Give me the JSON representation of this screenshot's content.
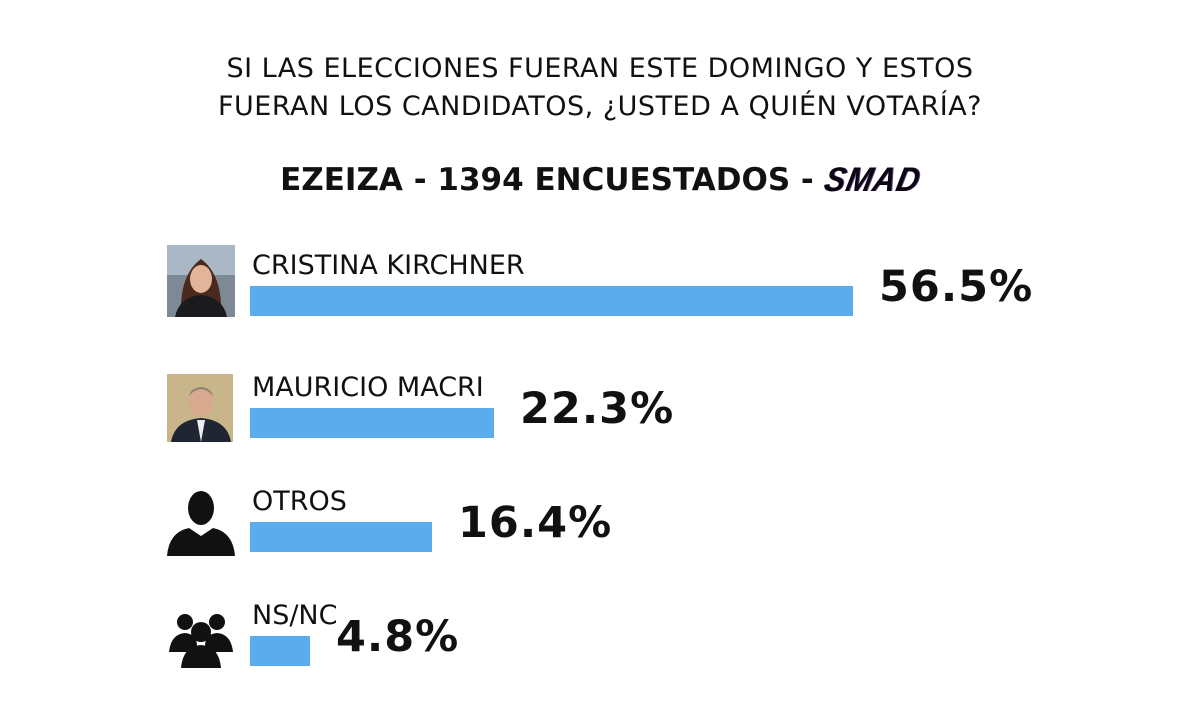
{
  "title_lines": [
    "SI LAS ELECCIONES FUERAN ESTE DOMINGO Y ESTOS",
    "FUERAN LOS CANDIDATOS, ¿USTED A QUIÉN VOTARÍA?"
  ],
  "subtitle": "EZEIZA - 1394 ENCUESTADOS -",
  "logo_text": "SMAD",
  "colors": {
    "bar": "#5aaced",
    "text": "#111111"
  },
  "chart_data": {
    "type": "bar",
    "orientation": "horizontal",
    "title": "SI LAS ELECCIONES FUERAN ESTE DOMINGO Y ESTOS FUERAN LOS CANDIDATOS, ¿USTED A QUIÉN VOTARÍA?",
    "subtitle": "EZEIZA - 1394 ENCUESTADOS - SMAD",
    "categories": [
      "CRISTINA KIRCHNER",
      "MAURICIO MACRI",
      "OTROS",
      "NS/NC"
    ],
    "values": [
      56.5,
      22.3,
      16.4,
      4.8
    ],
    "value_labels": [
      "56.5%",
      "22.3%",
      "16.4%",
      "4.8%"
    ],
    "icons": [
      "photo-cristina-kirchner",
      "photo-mauricio-macri",
      "person-silhouette-icon",
      "group-people-icon"
    ],
    "grid": false
  }
}
